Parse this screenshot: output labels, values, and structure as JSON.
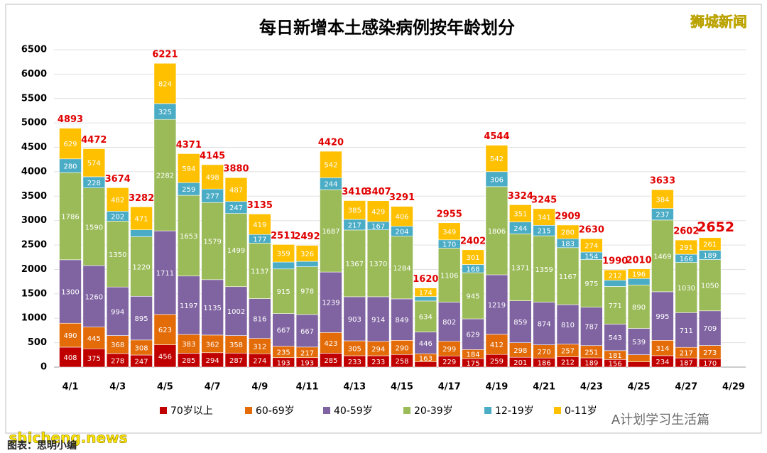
{
  "chart_data": {
    "type": "stacked-bar",
    "title": "每日新增本土感染病例按年龄划分",
    "categories": [
      "4/1",
      null,
      "4/3",
      null,
      "4/5",
      null,
      "4/7",
      null,
      "4/9",
      null,
      "4/11",
      null,
      "4/13",
      null,
      "4/15",
      null,
      "4/17",
      null,
      "4/19",
      null,
      "4/21",
      null,
      "4/23",
      null,
      "4/25",
      null,
      "4/27",
      null,
      "4/29"
    ],
    "series": [
      {
        "name": "70岁以上",
        "color": "#c00000",
        "values": [
          408,
          375,
          278,
          247,
          456,
          285,
          294,
          287,
          274,
          193,
          193,
          285,
          233,
          233,
          258,
          111,
          229,
          175,
          259,
          201,
          186,
          212,
          189,
          156,
          109,
          234,
          187,
          170,
          null
        ]
      },
      {
        "name": "60-69岁",
        "color": "#e36c09",
        "values": [
          490,
          445,
          368,
          308,
          623,
          383,
          362,
          358,
          312,
          235,
          217,
          423,
          305,
          294,
          290,
          163,
          299,
          184,
          412,
          298,
          270,
          257,
          251,
          181,
          144,
          314,
          217,
          273,
          null
        ]
      },
      {
        "name": "40-59岁",
        "color": "#8064a2",
        "values": [
          1300,
          1260,
          994,
          895,
          1711,
          1197,
          1135,
          1002,
          816,
          667,
          667,
          1239,
          903,
          914,
          849,
          446,
          802,
          629,
          1219,
          859,
          874,
          810,
          787,
          543,
          539,
          995,
          711,
          709,
          null
        ]
      },
      {
        "name": "20-39岁",
        "color": "#9bbb59",
        "values": [
          1786,
          1590,
          1350,
          1220,
          2282,
          1653,
          1579,
          1499,
          1137,
          915,
          978,
          1687,
          1367,
          1370,
          1284,
          634,
          1106,
          945,
          1806,
          1371,
          1359,
          1167,
          975,
          771,
          890,
          1469,
          1030,
          1050,
          null
        ]
      },
      {
        "name": "12-19岁",
        "color": "#4bacc6",
        "values": [
          280,
          228,
          202,
          141,
          325,
          259,
          277,
          247,
          177,
          142,
          111,
          244,
          217,
          167,
          204,
          92,
          170,
          168,
          306,
          244,
          215,
          183,
          154,
          127,
          132,
          237,
          166,
          189,
          null
        ]
      },
      {
        "name": "0-11岁",
        "color": "#ffc000",
        "values": [
          629,
          574,
          482,
          471,
          824,
          594,
          498,
          487,
          419,
          359,
          326,
          542,
          385,
          429,
          406,
          174,
          349,
          301,
          542,
          351,
          341,
          280,
          274,
          212,
          196,
          384,
          291,
          261,
          null
        ]
      }
    ],
    "totals": [
      4893,
      4472,
      3674,
      3282,
      6221,
      4371,
      4145,
      3880,
      3135,
      2511,
      2492,
      4420,
      3410,
      3407,
      3291,
      1620,
      2955,
      2402,
      4544,
      3324,
      3245,
      2909,
      2630,
      1990,
      2010,
      3633,
      2602,
      2652,
      null
    ],
    "ylim": [
      0,
      6500
    ],
    "yticks": [
      0,
      500,
      1000,
      1500,
      2000,
      2500,
      3000,
      3500,
      4000,
      4500,
      5000,
      5500,
      6000,
      6500
    ],
    "grid": true
  },
  "watermarks": {
    "source": "狮城新闻",
    "site": "shicheng.news",
    "account": "A计划学习生活篇",
    "credit": "图表：思明小编"
  }
}
